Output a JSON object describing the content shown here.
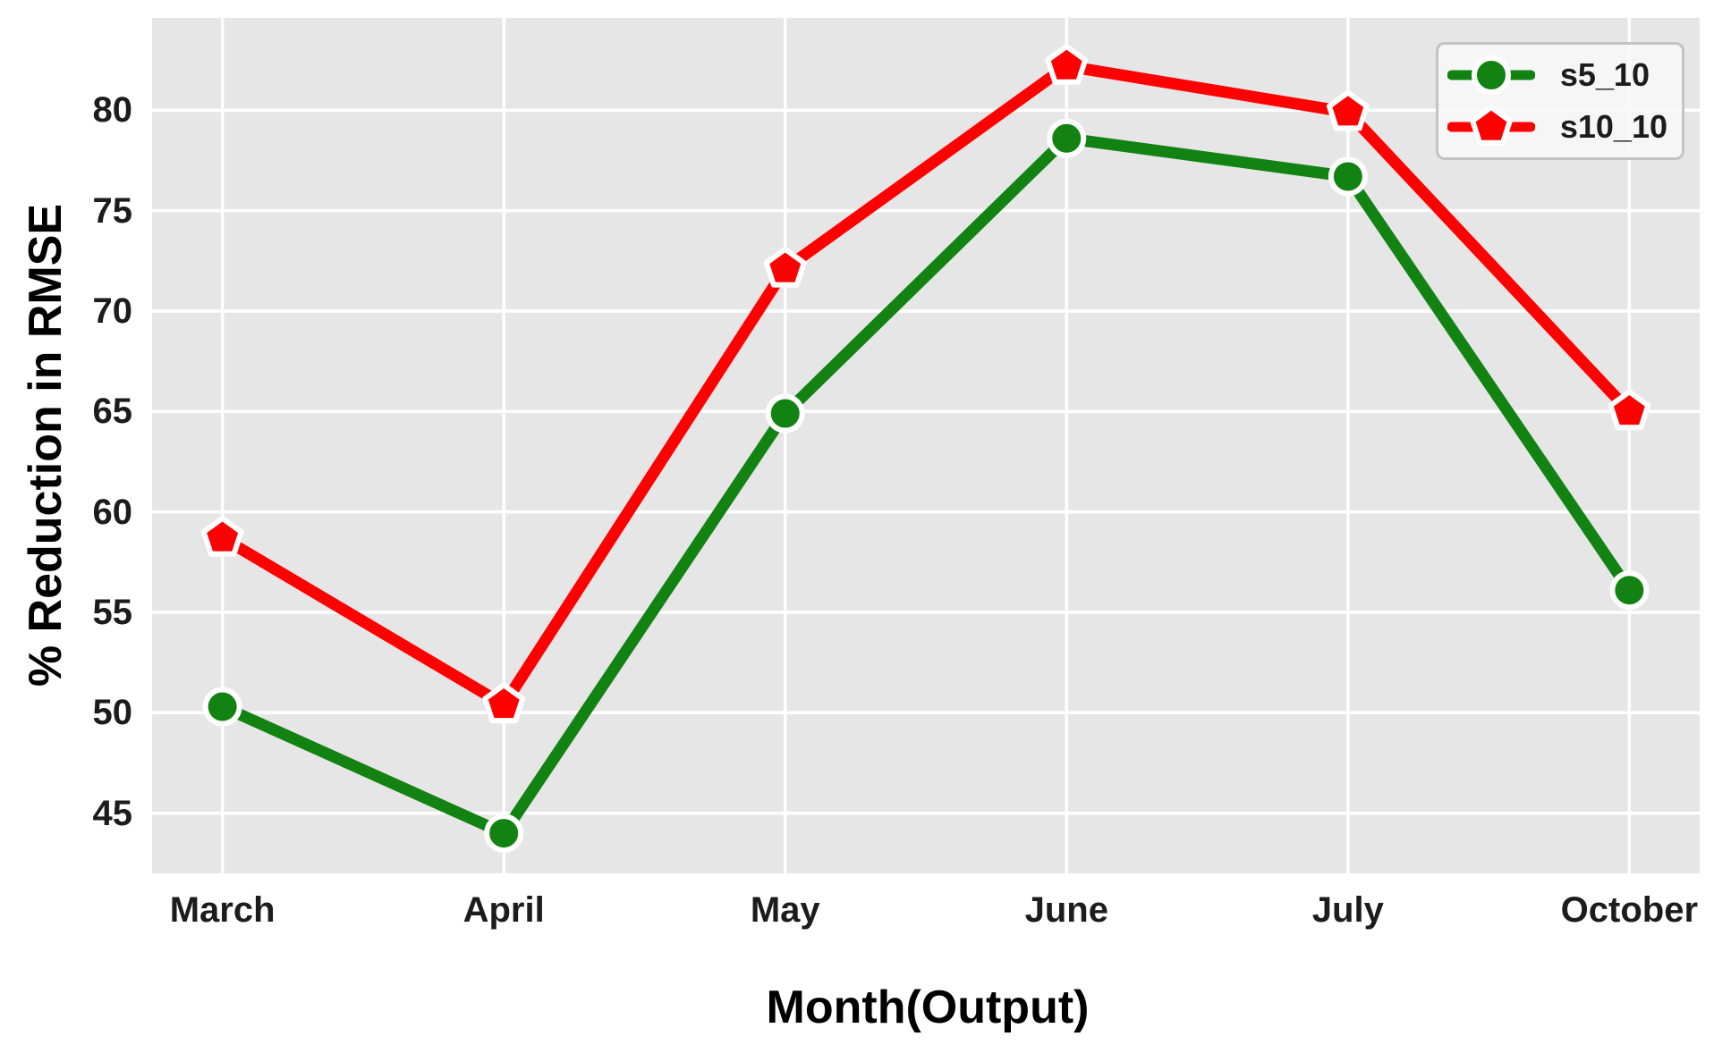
{
  "chart_data": {
    "type": "line",
    "title": "",
    "xlabel": "Month(Output)",
    "ylabel": "% Reduction in RMSE",
    "categories": [
      "March",
      "April",
      "May",
      "June",
      "July",
      "October"
    ],
    "series": [
      {
        "name": "s5_10",
        "color": "#128312",
        "marker": "circle",
        "values": [
          50.3,
          44.0,
          64.9,
          78.6,
          76.7,
          56.1
        ]
      },
      {
        "name": "s10_10",
        "color": "#ff0000",
        "marker": "pentagon",
        "values": [
          58.7,
          50.4,
          72.1,
          82.2,
          79.9,
          65.0
        ]
      }
    ],
    "yticks": [
      45,
      50,
      55,
      60,
      65,
      70,
      75,
      80
    ],
    "ylim": [
      42.0,
      84.6
    ],
    "xlim": [
      -0.25,
      5.25
    ],
    "grid": true,
    "legend_position": "upper right",
    "plot_bg_color": "#e6e6e6",
    "grid_color": "#ffffff",
    "marker_edge_color": "#ffffff",
    "line_width": 13,
    "tick_color": "#1c1c1c"
  }
}
